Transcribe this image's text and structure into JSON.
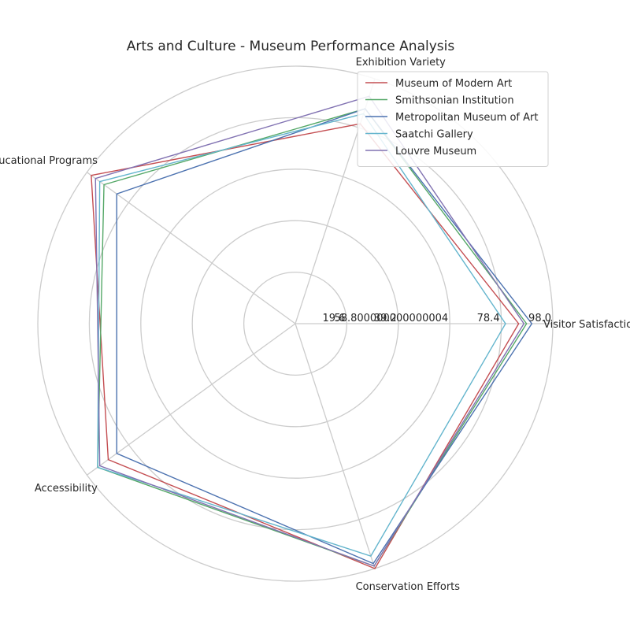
{
  "chart_data": {
    "type": "radar",
    "title": "Arts and Culture - Museum Performance Analysis",
    "categories": [
      "Visitor Satisfaction",
      "Exhibition Variety",
      "Educational Programs",
      "Accessibility",
      "Conservation Efforts"
    ],
    "radial_ticks": [
      "19.6",
      "39.2",
      "58.800000000000004",
      "78.4",
      "98.0"
    ],
    "radial_tick_values": [
      19.6,
      39.2,
      58.8,
      78.4,
      98.0
    ],
    "rmax": 98.0,
    "grid": true,
    "legend_position": "top-right",
    "series": [
      {
        "name": "Museum of Modern Art",
        "color": "#c44e52",
        "values": [
          85,
          80,
          96,
          88,
          98
        ]
      },
      {
        "name": "Smithsonian Institution",
        "color": "#55a868",
        "values": [
          88,
          86,
          90,
          93,
          97
        ]
      },
      {
        "name": "Metropolitan Museum of Art",
        "color": "#4c72b0",
        "values": [
          90,
          86,
          84,
          84,
          96
        ]
      },
      {
        "name": "Saatchi Gallery",
        "color": "#64b5cd",
        "values": [
          80,
          84,
          92,
          93,
          93
        ]
      },
      {
        "name": "Louvre Museum",
        "color": "#8172b2",
        "values": [
          87,
          91,
          94,
          92,
          97
        ]
      }
    ]
  }
}
